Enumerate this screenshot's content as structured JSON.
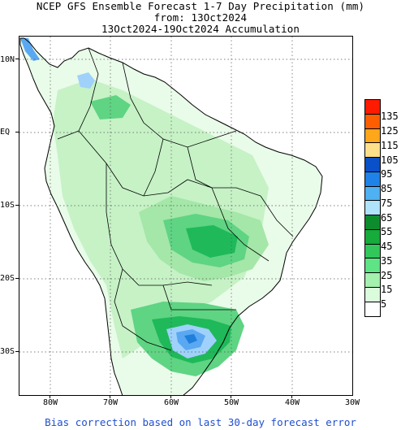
{
  "header": {
    "title": "NCEP GFS Ensemble Forecast 1-7 Day Precipitation (mm)",
    "from_line": "from: 13Oct2024",
    "accumulation_line": "13Oct2024-19Oct2024 Accumulation"
  },
  "map": {
    "lat_labels": [
      "10N",
      "EQ",
      "10S",
      "20S",
      "30S"
    ],
    "lon_labels": [
      "80W",
      "70W",
      "60W",
      "50W",
      "40W",
      "30W"
    ],
    "grid": "dotted",
    "colors": {
      "ocean": "#ffffff",
      "very_light": "#e9fbe9",
      "light": "#c6f2c6",
      "medium_light": "#a4e7a8",
      "medium": "#5fd483",
      "strong": "#1fb95a",
      "very_strong": "#139a46",
      "deep_blue": "#1f7fdb",
      "mid_blue": "#5aa8f2",
      "light_blue": "#9fd1fa",
      "border": "#000000"
    }
  },
  "legend": {
    "labels": [
      "135",
      "125",
      "115",
      "105",
      "95",
      "85",
      "75",
      "65",
      "55",
      "45",
      "35",
      "25",
      "15",
      "5"
    ],
    "colors": [
      "#ff1a00",
      "#ff5e00",
      "#ffa61a",
      "#ffe08a",
      "#0a50c8",
      "#1e82e8",
      "#4fb0f2",
      "#aee3fb",
      "#0d8c2e",
      "#16ab3a",
      "#31c75a",
      "#5ee385",
      "#a4f0ae",
      "#dafbdc",
      "#ffffff"
    ]
  },
  "footer": {
    "note": "Bias correction based on last 30-day forecast error"
  }
}
